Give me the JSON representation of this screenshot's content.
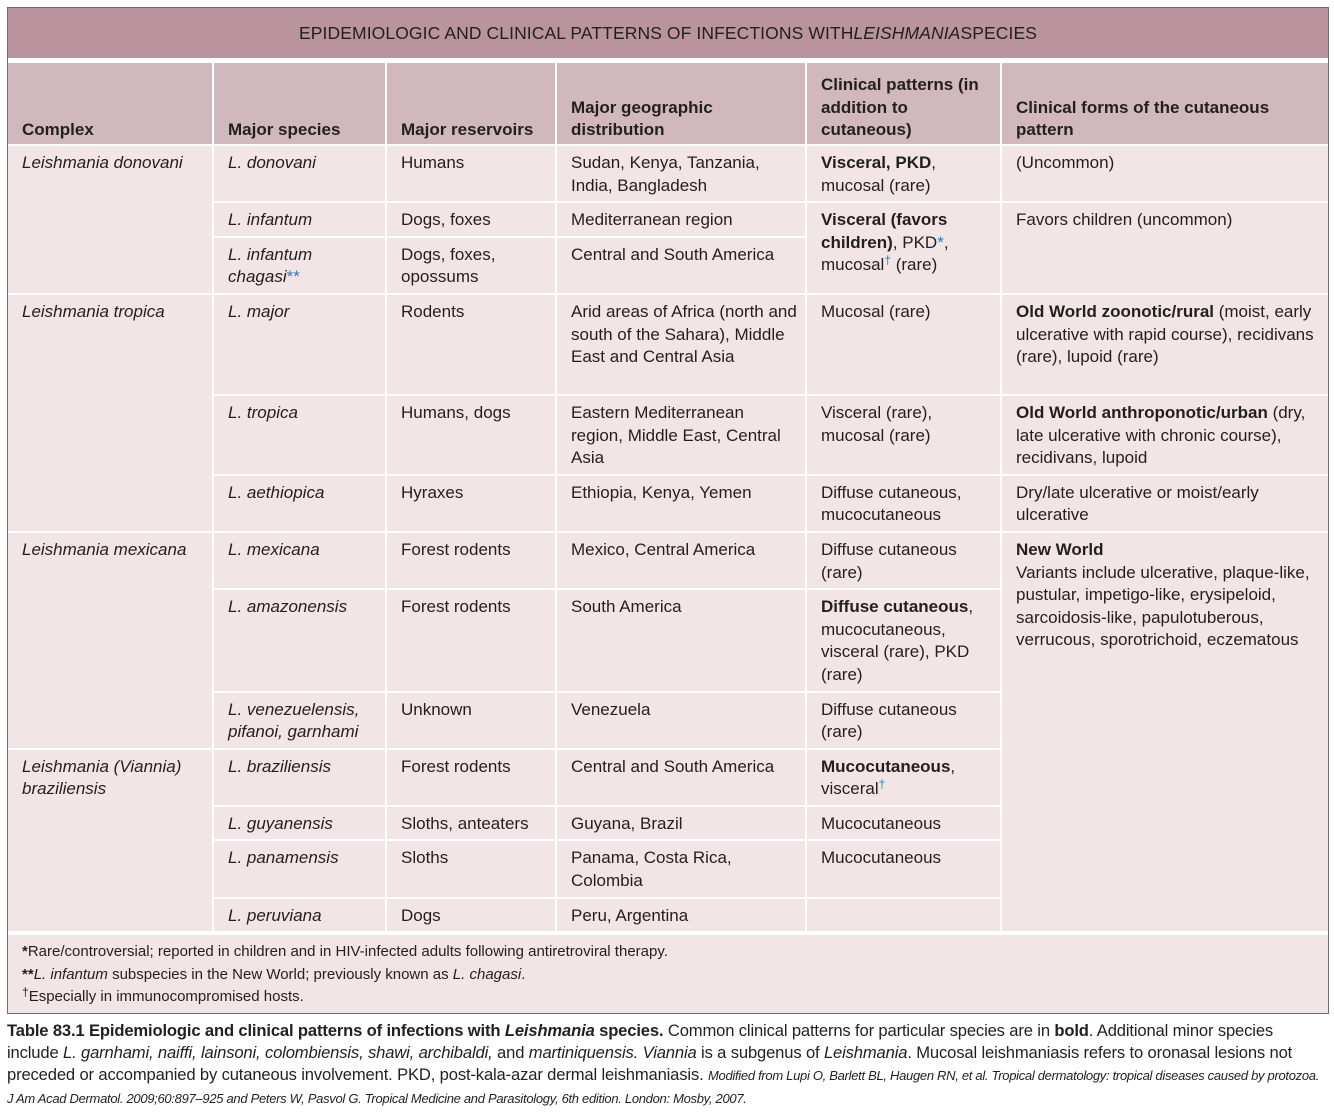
{
  "title": [
    {
      "t": "EPIDEMIOLOGIC AND CLINICAL PATTERNS OF INFECTIONS WITH "
    },
    {
      "t": "LEISHMANIA",
      "i": true
    },
    {
      "t": " SPECIES"
    }
  ],
  "colors": {
    "title_bg": "#b9939e",
    "header_bg": "#d0b8be",
    "body_bg": "#f1e5e6",
    "footnote_marks": "#2a7fb8"
  },
  "headers": [
    "Complex",
    "Major species",
    "Major reservoirs",
    "Major geographic distribution",
    "Clinical patterns (in addition to cutaneous)",
    "Clinical forms of the cutaneous pattern"
  ],
  "rows": [
    {
      "complex": {
        "span": 3,
        "c": [
          {
            "t": "Leishmania donovani",
            "i": true
          }
        ]
      },
      "species": [
        {
          "t": "L. donovani",
          "i": true
        }
      ],
      "reservoirs": "Humans",
      "distribution": "Sudan, Kenya, Tanzania, India, Bangladesh",
      "patterns": {
        "span": 1,
        "c": [
          {
            "t": "Visceral, PKD",
            "b": true
          },
          {
            "t": ", mucosal (rare)"
          }
        ]
      },
      "forms": {
        "span": 1,
        "c": [
          {
            "t": "(Uncommon)"
          }
        ]
      }
    },
    {
      "species": [
        {
          "t": "L. infantum",
          "i": true
        }
      ],
      "reservoirs": "Dogs, foxes",
      "distribution": "Mediterranean region",
      "patterns": {
        "span": 2,
        "c": [
          {
            "t": "Visceral (favors children)",
            "b": true
          },
          {
            "t": ", PKD"
          },
          {
            "t": "*",
            "star": true
          },
          {
            "t": ", mucosal"
          },
          {
            "t": "†",
            "sup": true
          },
          {
            "t": " (rare)"
          }
        ]
      },
      "forms": {
        "span": 2,
        "c": [
          {
            "t": "Favors children (uncommon)"
          }
        ]
      }
    },
    {
      "species": [
        {
          "t": "L. infantum chagasi",
          "i": true
        },
        {
          "t": "**",
          "star": true
        }
      ],
      "reservoirs": "Dogs, foxes, opossums",
      "distribution": "Central and South America"
    },
    {
      "complex": {
        "span": 3,
        "c": [
          {
            "t": "Leishmania tropica",
            "i": true
          }
        ]
      },
      "species": [
        {
          "t": "L. major",
          "i": true
        }
      ],
      "reservoirs": "Rodents",
      "distribution": "Arid areas of Africa (north and south of the Sahara), Middle East and Central Asia",
      "patterns": {
        "span": 1,
        "c": [
          {
            "t": "Mucosal (rare)"
          }
        ]
      },
      "forms": {
        "span": 1,
        "c": [
          {
            "t": "Old World zoonotic/rural",
            "b": true
          },
          {
            "t": " (moist, early ulcerative with rapid course), recidivans (rare), lupoid (rare)"
          }
        ]
      }
    },
    {
      "species": [
        {
          "t": "L. tropica",
          "i": true
        }
      ],
      "reservoirs": "Humans, dogs",
      "distribution": "Eastern Mediterranean region, Middle East, Central Asia",
      "patterns": {
        "span": 1,
        "c": [
          {
            "t": "Visceral (rare), mucosal (rare)"
          }
        ]
      },
      "forms": {
        "span": 1,
        "c": [
          {
            "t": "Old World anthroponotic/urban",
            "b": true
          },
          {
            "t": " (dry, late ulcerative with chronic course), recidivans, lupoid"
          }
        ]
      }
    },
    {
      "species": [
        {
          "t": "L. aethiopica",
          "i": true
        }
      ],
      "reservoirs": "Hyraxes",
      "distribution": "Ethiopia, Kenya, Yemen",
      "patterns": {
        "span": 1,
        "c": [
          {
            "t": "Diffuse cutaneous, mucocutaneous"
          }
        ]
      },
      "forms": {
        "span": 1,
        "c": [
          {
            "t": "Dry/late ulcerative or moist/early ulcerative"
          }
        ]
      }
    },
    {
      "complex": {
        "span": 3,
        "c": [
          {
            "t": "Leishmania mexicana",
            "i": true
          }
        ]
      },
      "species": [
        {
          "t": "L. mexicana",
          "i": true
        }
      ],
      "reservoirs": "Forest rodents",
      "distribution": "Mexico, Central America",
      "patterns": {
        "span": 1,
        "c": [
          {
            "t": "Diffuse cutaneous (rare)"
          }
        ]
      },
      "forms": {
        "span": 7,
        "c": [
          {
            "t": "New World",
            "b": true,
            "br": true
          },
          {
            "t": "Variants include ulcerative, plaque-like, pustular, impetigo-like, erysipeloid, sarcoidosis-like, papulotuberous, verrucous, sporotrichoid, eczematous"
          }
        ]
      }
    },
    {
      "species": [
        {
          "t": "L. amazonensis",
          "i": true
        }
      ],
      "reservoirs": "Forest rodents",
      "distribution": "South America",
      "patterns": {
        "span": 1,
        "c": [
          {
            "t": "Diffuse cutaneous",
            "b": true
          },
          {
            "t": ", mucocutaneous, visceral (rare), PKD (rare)"
          }
        ]
      }
    },
    {
      "species": [
        {
          "t": "L. venezuelensis, pifanoi, garnhami",
          "i": true
        }
      ],
      "reservoirs": "Unknown",
      "distribution": "Venezuela",
      "patterns": {
        "span": 1,
        "c": [
          {
            "t": "Diffuse cutaneous (rare)"
          }
        ]
      }
    },
    {
      "complex": {
        "span": 4,
        "c": [
          {
            "t": "Leishmania (Viannia) braziliensis",
            "i": true
          }
        ]
      },
      "species": [
        {
          "t": "L. braziliensis",
          "i": true
        }
      ],
      "reservoirs": "Forest rodents",
      "distribution": "Central and South America",
      "patterns": {
        "span": 1,
        "c": [
          {
            "t": "Mucocutaneous",
            "b": true
          },
          {
            "t": ", visceral"
          },
          {
            "t": "†",
            "sup": true
          }
        ]
      }
    },
    {
      "species": [
        {
          "t": "L. guyanensis",
          "i": true
        }
      ],
      "reservoirs": "Sloths, anteaters",
      "distribution": "Guyana, Brazil",
      "patterns": {
        "span": 1,
        "c": [
          {
            "t": "Mucocutaneous"
          }
        ]
      }
    },
    {
      "species": [
        {
          "t": "L. panamensis",
          "i": true
        }
      ],
      "reservoirs": "Sloths",
      "distribution": "Panama, Costa Rica, Colombia",
      "patterns": {
        "span": 1,
        "c": [
          {
            "t": "Mucocutaneous"
          }
        ]
      }
    },
    {
      "species": [
        {
          "t": "L. peruviana",
          "i": true
        }
      ],
      "reservoirs": "Dogs",
      "distribution": "Peru, Argentina",
      "patterns": {
        "span": 1,
        "c": []
      }
    }
  ],
  "footnotes": [
    [
      {
        "t": "*"
      },
      {
        "t": "Rare/controversial; reported in children and in HIV-infected adults following antiretroviral therapy."
      }
    ],
    [
      {
        "t": "**"
      },
      {
        "t": "L. infantum",
        "i": true
      },
      {
        "t": " subspecies in the New World; previously known as "
      },
      {
        "t": "L. chagasi",
        "i": true
      },
      {
        "t": "."
      }
    ],
    [
      {
        "t": "†",
        "sup": true
      },
      {
        "t": "Especially in immunocompromised hosts."
      }
    ]
  ],
  "caption": [
    {
      "t": "Table 83.1 Epidemiologic and clinical patterns of infections with ",
      "b": true
    },
    {
      "t": "Leishmania",
      "b": true,
      "i": true
    },
    {
      "t": " species.",
      "b": true
    },
    {
      "t": " Common clinical patterns for particular species are in "
    },
    {
      "t": "bold",
      "b": true
    },
    {
      "t": ". Additional minor species include "
    },
    {
      "t": "L. garnhami, naiffi, lainsoni, colombiensis, shawi, archibaldi,",
      "i": true
    },
    {
      "t": " and "
    },
    {
      "t": "martiniquensis. Viannia",
      "i": true
    },
    {
      "t": " is a subgenus of "
    },
    {
      "t": "Leishmania",
      "i": true
    },
    {
      "t": ". Mucosal leishmaniasis refers to oronasal lesions not preceded or accompanied by cutaneous involvement. PKD, post-kala-azar dermal leishmaniasis. "
    },
    {
      "t": "Modified from Lupi O, Barlett BL, Haugen RN, et al. Tropical dermatology: tropical diseases caused by protozoa. J Am Acad Dermatol. 2009;60:897–925 and Peters W, Pasvol G. Tropical Medicine and Parasitology, 6th edition. London: Mosby, 2007.",
      "src": true
    }
  ]
}
